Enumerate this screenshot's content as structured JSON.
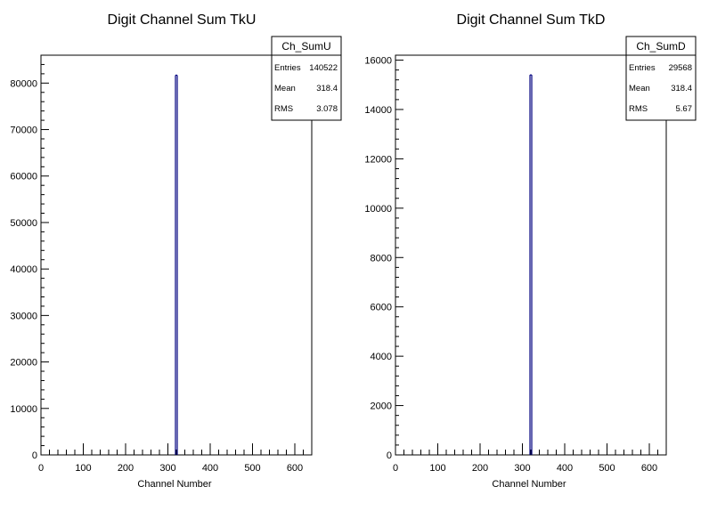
{
  "chart_data": [
    {
      "type": "bar",
      "title": "Digit Channel Sum TkU",
      "xlabel": "Channel Number",
      "ylabel": "",
      "xlim": [
        0,
        640
      ],
      "ylim": [
        0,
        86000
      ],
      "x_ticks": [
        "0",
        "100",
        "200",
        "300",
        "400",
        "500",
        "600"
      ],
      "y_ticks": [
        "0",
        "10000",
        "20000",
        "30000",
        "40000",
        "50000",
        "60000",
        "70000",
        "80000"
      ],
      "bins": [
        {
          "x": 320,
          "value": 81700
        }
      ],
      "line_color": "#00007f",
      "stats": {
        "name": "Ch_SumU",
        "rows": [
          {
            "label": "Entries",
            "value": "140522"
          },
          {
            "label": "Mean",
            "value": "318.4"
          },
          {
            "label": "RMS",
            "value": "3.078"
          }
        ]
      }
    },
    {
      "type": "bar",
      "title": "Digit Channel Sum TkD",
      "xlabel": "Channel Number",
      "ylabel": "",
      "xlim": [
        0,
        640
      ],
      "ylim": [
        0,
        16200
      ],
      "x_ticks": [
        "0",
        "100",
        "200",
        "300",
        "400",
        "500",
        "600"
      ],
      "y_ticks": [
        "0",
        "2000",
        "4000",
        "6000",
        "8000",
        "10000",
        "12000",
        "14000",
        "16000"
      ],
      "bins": [
        {
          "x": 320,
          "value": 15400
        }
      ],
      "line_color": "#00007f",
      "stats": {
        "name": "Ch_SumD",
        "rows": [
          {
            "label": "Entries",
            "value": "29568"
          },
          {
            "label": "Mean",
            "value": "318.4"
          },
          {
            "label": "RMS",
            "value": "5.67"
          }
        ]
      }
    }
  ]
}
